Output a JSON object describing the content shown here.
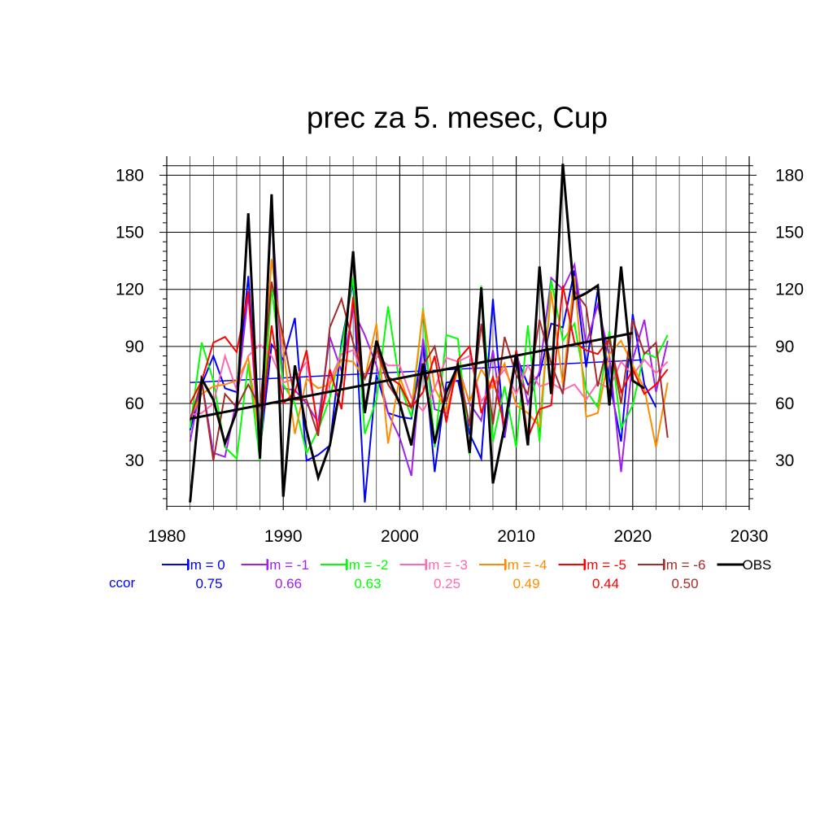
{
  "chart_data": {
    "type": "line",
    "title": "prec za 5. mesec, Cup",
    "xlabel": "",
    "ylabel": "",
    "xlim": [
      1980,
      2030
    ],
    "ylim": [
      4,
      190
    ],
    "xticks": [
      1980,
      1990,
      2000,
      2010,
      2020,
      2030
    ],
    "yticks": [
      30,
      60,
      90,
      120,
      150,
      180
    ],
    "grid": true,
    "legend_position": "bottom",
    "ccor_label": "ccor",
    "series": [
      {
        "name": "lm = 0",
        "color": "#0000ff",
        "ccor": "0.75",
        "x_start": 1982,
        "values": [
          46,
          70,
          85,
          68,
          66,
          127,
          35,
          91,
          83,
          105,
          30,
          33,
          38,
          92,
          124,
          8,
          75,
          55,
          53,
          52,
          92,
          24,
          71,
          72,
          44,
          31,
          115,
          42,
          85,
          70,
          75,
          102,
          100,
          130,
          79,
          120,
          72,
          40,
          107,
          70,
          58
        ]
      },
      {
        "name": "lm = -1",
        "color": "#a020f0",
        "ccor": "0.66",
        "x_start": 1982,
        "values": [
          40,
          72,
          34,
          32,
          62,
          118,
          32,
          163,
          68,
          67,
          60,
          50,
          95,
          77,
          109,
          96,
          80,
          55,
          42,
          22,
          94,
          57,
          55,
          80,
          60,
          51,
          88,
          43,
          88,
          60,
          77,
          126,
          120,
          133,
          91,
          112,
          85,
          24,
          83,
          104,
          66,
          93
        ]
      },
      {
        "name": "lm = -2",
        "color": "#00ff00",
        "ccor": "0.63",
        "x_start": 1982,
        "values": [
          47,
          92,
          72,
          37,
          31,
          81,
          30,
          121,
          70,
          60,
          34,
          46,
          63,
          89,
          126,
          44,
          62,
          111,
          70,
          53,
          110,
          37,
          96,
          94,
          33,
          122,
          40,
          69,
          37,
          101,
          40,
          125,
          93,
          102,
          67,
          58,
          98,
          47,
          59,
          87,
          84,
          96
        ]
      },
      {
        "name": "lm = -3",
        "color": "#ff69b4",
        "ccor": "0.25",
        "x_start": 1982,
        "values": [
          54,
          55,
          60,
          85,
          67,
          85,
          91,
          85,
          71,
          73,
          82,
          48,
          72,
          86,
          88,
          73,
          85,
          80,
          80,
          63,
          56,
          68,
          84,
          82,
          85,
          61,
          70,
          78,
          65,
          80,
          69,
          71,
          67,
          70,
          62,
          71,
          68,
          82,
          75,
          83,
          76,
          82
        ]
      },
      {
        "name": "lm = -4",
        "color": "#ff8c00",
        "ccor": "0.49",
        "x_start": 1982,
        "values": [
          52,
          65,
          69,
          70,
          72,
          84,
          40,
          136,
          88,
          44,
          73,
          68,
          70,
          83,
          82,
          73,
          102,
          39,
          74,
          57,
          109,
          68,
          56,
          78,
          61,
          78,
          68,
          81,
          59,
          55,
          48,
          119,
          70,
          127,
          53,
          55,
          86,
          93,
          80,
          68,
          37,
          71
        ]
      },
      {
        "name": "lm = -5",
        "color": "#ff0000",
        "ccor": "0.44",
        "x_start": 1982,
        "values": [
          60,
          72,
          92,
          95,
          87,
          119,
          40,
          101,
          60,
          66,
          88,
          45,
          78,
          57,
          116,
          58,
          89,
          74,
          70,
          58,
          66,
          85,
          50,
          83,
          90,
          55,
          74,
          48,
          88,
          42,
          57,
          59,
          122,
          92,
          88,
          86,
          94,
          66,
          78,
          65,
          70,
          78
        ]
      },
      {
        "name": "lm = -6",
        "color": "#a52a2a",
        "ccor": "0.50",
        "x_start": 1982,
        "values": [
          51,
          72,
          30,
          65,
          58,
          70,
          58,
          124,
          95,
          62,
          62,
          43,
          100,
          115,
          92,
          73,
          89,
          70,
          61,
          58,
          80,
          90,
          61,
          81,
          48,
          102,
          49,
          95,
          75,
          65,
          104,
          81,
          65,
          119,
          111,
          69,
          95,
          60,
          104,
          86,
          92,
          42
        ]
      },
      {
        "name": "OBS",
        "color": "#000000",
        "ccor": "",
        "x_start": 1982,
        "values": [
          8,
          73,
          62,
          39,
          56,
          160,
          31,
          170,
          11,
          80,
          46,
          21,
          38,
          72,
          140,
          55,
          93,
          74,
          60,
          38,
          81,
          39,
          66,
          80,
          34,
          121,
          18,
          48,
          86,
          38,
          132,
          65,
          186,
          115,
          118,
          122,
          59,
          132,
          72,
          68
        ]
      }
    ],
    "trends": [
      {
        "series": "lm = 0",
        "color": "#0000ff",
        "x": [
          1982,
          2021
        ],
        "y": [
          71,
          83
        ]
      },
      {
        "series": "OBS",
        "color": "#000000",
        "x": [
          1982,
          2020
        ],
        "y": [
          52,
          97
        ]
      }
    ]
  }
}
